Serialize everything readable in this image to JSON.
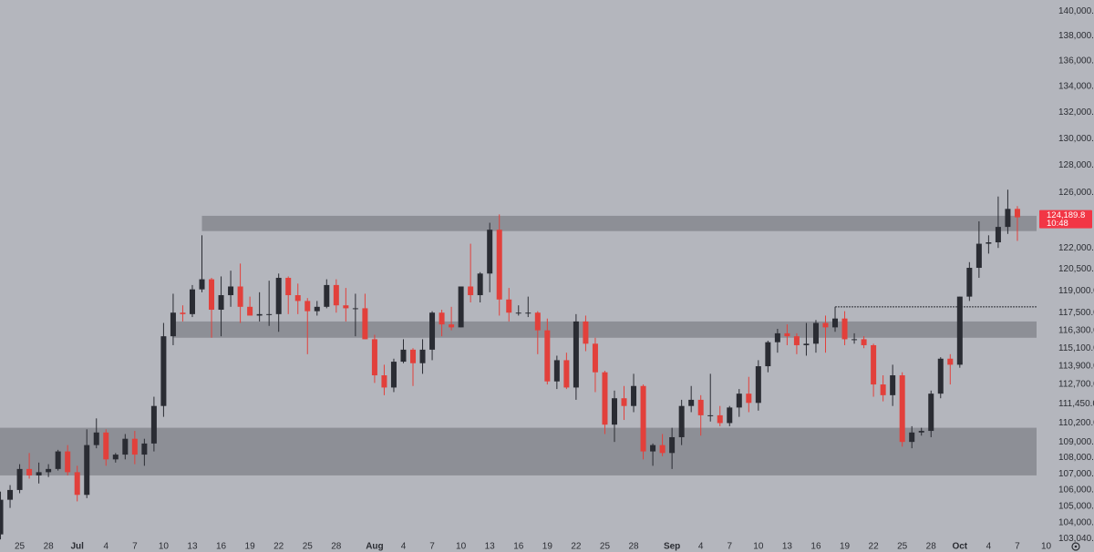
{
  "chart_data": {
    "type": "candlestick",
    "log_scale": true,
    "up_color": "#2a2c33",
    "down_color": "#e2403b",
    "zone_color": "#8d8f96",
    "x": [
      "Jun 23",
      "Jun 24",
      "Jun 25",
      "Jun 26",
      "Jun 27",
      "Jun 28",
      "Jun 29",
      "Jun 30",
      "Jul 1",
      "Jul 2",
      "Jul 3",
      "Jul 4",
      "Jul 5",
      "Jul 6",
      "Jul 7",
      "Jul 8",
      "Jul 9",
      "Jul 10",
      "Jul 11",
      "Jul 12",
      "Jul 13",
      "Jul 14",
      "Jul 15",
      "Jul 16",
      "Jul 17",
      "Jul 18",
      "Jul 19",
      "Jul 20",
      "Jul 21",
      "Jul 22",
      "Jul 23",
      "Jul 24",
      "Jul 25",
      "Jul 26",
      "Jul 27",
      "Jul 28",
      "Jul 29",
      "Jul 30",
      "Jul 31",
      "Aug 1",
      "Aug 2",
      "Aug 3",
      "Aug 4",
      "Aug 5",
      "Aug 6",
      "Aug 7",
      "Aug 8",
      "Aug 9",
      "Aug 10",
      "Aug 11",
      "Aug 12",
      "Aug 13",
      "Aug 14",
      "Aug 15",
      "Aug 16",
      "Aug 17",
      "Aug 18",
      "Aug 19",
      "Aug 20",
      "Aug 21",
      "Aug 22",
      "Aug 23",
      "Aug 24",
      "Aug 25",
      "Aug 26",
      "Aug 27",
      "Aug 28",
      "Aug 29",
      "Aug 30",
      "Aug 31",
      "Sep 1",
      "Sep 2",
      "Sep 3",
      "Sep 4",
      "Sep 5",
      "Sep 6",
      "Sep 7",
      "Sep 8",
      "Sep 9",
      "Sep 10",
      "Sep 11",
      "Sep 12",
      "Sep 13",
      "Sep 14",
      "Sep 15",
      "Sep 16",
      "Sep 17",
      "Sep 18",
      "Sep 19",
      "Sep 20",
      "Sep 21",
      "Sep 22",
      "Sep 23",
      "Sep 24",
      "Sep 25",
      "Sep 26",
      "Sep 27",
      "Sep 28",
      "Sep 29",
      "Sep 30",
      "Oct 1",
      "Oct 2",
      "Oct 3",
      "Oct 4",
      "Oct 5",
      "Oct 6",
      "Oct 7"
    ],
    "open": [
      103300,
      105400,
      106000,
      107300,
      106900,
      107100,
      107300,
      108400,
      107100,
      105700,
      108800,
      109600,
      107900,
      108200,
      109200,
      108200,
      108900,
      111300,
      115900,
      117500,
      117400,
      119100,
      119800,
      117700,
      118700,
      119300,
      117900,
      117300,
      117400,
      117400,
      119900,
      118700,
      118300,
      117600,
      117900,
      119400,
      118000,
      117800,
      117800,
      115700,
      113300,
      112500,
      114200,
      115000,
      114100,
      115000,
      117500,
      116700,
      116500,
      119300,
      118700,
      120200,
      123300,
      118400,
      117500,
      117500,
      117500,
      116300,
      112900,
      114300,
      112500,
      116900,
      115400,
      113500,
      110100,
      111800,
      111300,
      112600,
      108400,
      108800,
      108300,
      109300,
      111300,
      111700,
      110700,
      110700,
      110200,
      111200,
      112100,
      111500,
      113900,
      115500,
      116100,
      115900,
      115300,
      115400,
      116800,
      116500,
      117100,
      115700,
      115700,
      115300,
      112700,
      112000,
      113300,
      109000,
      109600,
      109700,
      112100,
      114400,
      114000,
      118600,
      120600,
      122300,
      122400,
      123500,
      124800
    ],
    "high": [
      105900,
      106300,
      107600,
      108300,
      107700,
      107600,
      108500,
      108800,
      107500,
      109800,
      110500,
      109800,
      108300,
      109500,
      109700,
      109200,
      111900,
      116800,
      118800,
      118000,
      119400,
      122900,
      119900,
      120000,
      120400,
      120900,
      118600,
      118900,
      119700,
      120200,
      120000,
      119500,
      118500,
      118300,
      119800,
      119800,
      119200,
      118800,
      118800,
      116000,
      114000,
      114400,
      115700,
      115100,
      115700,
      117600,
      117700,
      117900,
      119300,
      122300,
      120300,
      123800,
      124400,
      119200,
      118000,
      118600,
      117600,
      117100,
      114600,
      114800,
      117400,
      117300,
      115800,
      113600,
      112300,
      112600,
      113400,
      112700,
      108900,
      109500,
      109900,
      111700,
      112600,
      112000,
      113400,
      111300,
      111300,
      112400,
      113200,
      114300,
      115600,
      116400,
      116700,
      116100,
      116800,
      117000,
      117300,
      117900,
      117600,
      116100,
      115900,
      115400,
      113300,
      114000,
      113500,
      110000,
      109900,
      112300,
      114500,
      114700,
      118600,
      121000,
      123900,
      122900,
      125700,
      126200,
      125000
    ],
    "low": [
      103000,
      104900,
      105800,
      106700,
      106400,
      106800,
      107200,
      106900,
      105300,
      105500,
      108600,
      107500,
      107700,
      107900,
      107600,
      107500,
      108400,
      110600,
      115300,
      116900,
      117200,
      118900,
      115800,
      115900,
      117900,
      116800,
      117300,
      116900,
      116600,
      116200,
      117400,
      117400,
      114700,
      117300,
      117800,
      117500,
      116900,
      115900,
      115700,
      112800,
      112000,
      112200,
      114100,
      112600,
      113400,
      114300,
      115900,
      116300,
      116500,
      118200,
      118200,
      118900,
      117300,
      116900,
      117300,
      117200,
      114700,
      112700,
      112400,
      112400,
      111700,
      114900,
      112200,
      109500,
      109000,
      110400,
      110900,
      107900,
      107500,
      108100,
      107300,
      108800,
      110900,
      109400,
      110300,
      110000,
      110000,
      110600,
      110900,
      111000,
      113500,
      114800,
      115300,
      114700,
      114600,
      114800,
      114800,
      116200,
      115300,
      115400,
      115100,
      111900,
      111600,
      111300,
      108700,
      108600,
      109400,
      109300,
      111800,
      112700,
      113800,
      118300,
      119900,
      121600,
      122000,
      123000,
      122500
    ],
    "close": [
      105400,
      106000,
      107300,
      106900,
      107100,
      107300,
      108400,
      107100,
      105700,
      108800,
      109600,
      107900,
      108200,
      109200,
      108200,
      108900,
      111300,
      115900,
      117500,
      117400,
      119100,
      119800,
      117700,
      118700,
      119300,
      117900,
      117300,
      117400,
      117400,
      119900,
      118700,
      118300,
      117600,
      117900,
      119400,
      118000,
      117800,
      117800,
      115700,
      113300,
      112500,
      114200,
      115000,
      114100,
      115000,
      117500,
      116700,
      116500,
      119300,
      118700,
      120200,
      123300,
      118400,
      117500,
      117500,
      117500,
      116300,
      112900,
      114300,
      112500,
      116900,
      115400,
      113500,
      110100,
      111800,
      111300,
      112600,
      108400,
      108800,
      108300,
      109300,
      111300,
      111700,
      110700,
      110700,
      110200,
      111200,
      112100,
      111500,
      113900,
      115500,
      116100,
      115900,
      115300,
      115400,
      116800,
      116500,
      117100,
      115700,
      115700,
      115300,
      112700,
      112000,
      113300,
      109000,
      109600,
      109700,
      112100,
      114400,
      114000,
      118600,
      120600,
      122300,
      122400,
      123500,
      124800,
      124189.8
    ],
    "xlim": [
      "Jun 22",
      "Oct 9"
    ],
    "ylim": [
      102900,
      140900
    ],
    "yticks": [
      {
        "value": 140000,
        "label": "140,000.0"
      },
      {
        "value": 138000,
        "label": "138,000.0"
      },
      {
        "value": 136000,
        "label": "136,000.0"
      },
      {
        "value": 134000,
        "label": "134,000.0"
      },
      {
        "value": 132000,
        "label": "132,000.0"
      },
      {
        "value": 130000,
        "label": "130,000.0"
      },
      {
        "value": 128000,
        "label": "128,000.0"
      },
      {
        "value": 126000,
        "label": "126,000.0"
      },
      {
        "value": 122000,
        "label": "122,000.0"
      },
      {
        "value": 120500,
        "label": "120,500.0"
      },
      {
        "value": 119000,
        "label": "119,000.0"
      },
      {
        "value": 117500,
        "label": "117,500.0"
      },
      {
        "value": 116300,
        "label": "116,300.0"
      },
      {
        "value": 115100,
        "label": "115,100.0"
      },
      {
        "value": 113900,
        "label": "113,900.0"
      },
      {
        "value": 112700,
        "label": "112,700.0"
      },
      {
        "value": 111450,
        "label": "111,450.0"
      },
      {
        "value": 110200,
        "label": "110,200.0"
      },
      {
        "value": 109000,
        "label": "109,000.0"
      },
      {
        "value": 108000,
        "label": "108,000.0"
      },
      {
        "value": 107000,
        "label": "107,000.0"
      },
      {
        "value": 106000,
        "label": "106,000.0"
      },
      {
        "value": 105000,
        "label": "105,000.0"
      },
      {
        "value": 104000,
        "label": "104,000.0"
      },
      {
        "value": 103040,
        "label": "103,040.0"
      }
    ],
    "xticks": [
      {
        "value": "Jun 25",
        "label": "25"
      },
      {
        "value": "Jun 28",
        "label": "28"
      },
      {
        "value": "Jul 1",
        "label": "Jul",
        "month": true
      },
      {
        "value": "Jul 4",
        "label": "4"
      },
      {
        "value": "Jul 7",
        "label": "7"
      },
      {
        "value": "Jul 10",
        "label": "10"
      },
      {
        "value": "Jul 13",
        "label": "13"
      },
      {
        "value": "Jul 16",
        "label": "16"
      },
      {
        "value": "Jul 19",
        "label": "19"
      },
      {
        "value": "Jul 22",
        "label": "22"
      },
      {
        "value": "Jul 25",
        "label": "25"
      },
      {
        "value": "Jul 28",
        "label": "28"
      },
      {
        "value": "Aug 1",
        "label": "Aug",
        "month": true
      },
      {
        "value": "Aug 4",
        "label": "4"
      },
      {
        "value": "Aug 7",
        "label": "7"
      },
      {
        "value": "Aug 10",
        "label": "10"
      },
      {
        "value": "Aug 13",
        "label": "13"
      },
      {
        "value": "Aug 16",
        "label": "16"
      },
      {
        "value": "Aug 19",
        "label": "19"
      },
      {
        "value": "Aug 22",
        "label": "22"
      },
      {
        "value": "Aug 25",
        "label": "25"
      },
      {
        "value": "Aug 28",
        "label": "28"
      },
      {
        "value": "Sep 1",
        "label": "Sep",
        "month": true
      },
      {
        "value": "Sep 4",
        "label": "4"
      },
      {
        "value": "Sep 7",
        "label": "7"
      },
      {
        "value": "Sep 10",
        "label": "10"
      },
      {
        "value": "Sep 13",
        "label": "13"
      },
      {
        "value": "Sep 16",
        "label": "16"
      },
      {
        "value": "Sep 19",
        "label": "19"
      },
      {
        "value": "Sep 22",
        "label": "22"
      },
      {
        "value": "Sep 25",
        "label": "25"
      },
      {
        "value": "Sep 28",
        "label": "28"
      },
      {
        "value": "Oct 1",
        "label": "Oct",
        "month": true
      },
      {
        "value": "Oct 4",
        "label": "4"
      },
      {
        "value": "Oct 7",
        "label": "7"
      },
      {
        "value": "Oct 10",
        "label": "10"
      }
    ],
    "zones": [
      {
        "start": "Jul 14",
        "low": 123200,
        "high": 124300
      },
      {
        "start": "Jul 11",
        "low": 115800,
        "high": 116900
      },
      {
        "low": 106900,
        "high": 109900
      }
    ],
    "level_line": {
      "start": "Sep 18",
      "value": 117900
    },
    "last_price": {
      "value": 124189.8,
      "label": "124,189.8",
      "color": "#f23645"
    },
    "countdown": "10:48"
  }
}
